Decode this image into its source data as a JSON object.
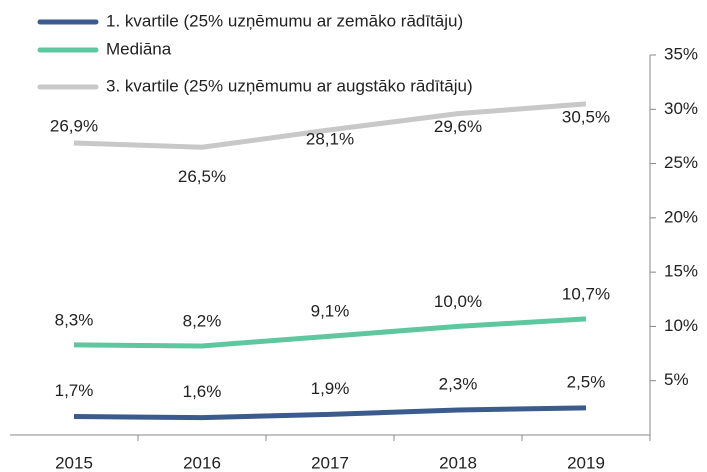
{
  "chart_data": {
    "type": "line",
    "categories": [
      "2015",
      "2016",
      "2017",
      "2018",
      "2019"
    ],
    "series": [
      {
        "name": "1. kvartile (25% uzņēmumu ar zemāko rādītāju)",
        "color": "#3b5b8f",
        "values": [
          1.7,
          1.6,
          1.9,
          2.3,
          2.5
        ],
        "value_labels": [
          "1,7%",
          "1,6%",
          "1,9%",
          "2,3%",
          "2,5%"
        ]
      },
      {
        "name": "Mediāna",
        "color": "#5fc79f",
        "values": [
          8.3,
          8.2,
          9.1,
          10.0,
          10.7
        ],
        "value_labels": [
          "8,3%",
          "8,2%",
          "9,1%",
          "10,0%",
          "10,7%"
        ]
      },
      {
        "name": "3. kvartile (25% uzņēmumu ar augstāko rādītāju)",
        "color": "#c8c8c8",
        "values": [
          26.9,
          26.5,
          28.1,
          29.6,
          30.5
        ],
        "value_labels": [
          "26,9%",
          "26,5%",
          "28,1%",
          "29,6%",
          "30,5%"
        ]
      }
    ],
    "ylim": [
      0,
      35
    ],
    "yticks": [
      {
        "value": 5,
        "label": "5%"
      },
      {
        "value": 10,
        "label": "10%"
      },
      {
        "value": 15,
        "label": "15%"
      },
      {
        "value": 20,
        "label": "20%"
      },
      {
        "value": 25,
        "label": "25%"
      },
      {
        "value": 30,
        "label": "30%"
      },
      {
        "value": 35,
        "label": "35%"
      }
    ],
    "legend": "top-left"
  }
}
